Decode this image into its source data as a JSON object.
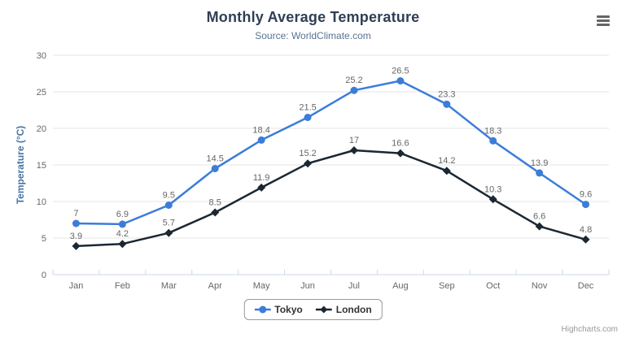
{
  "chart_data": {
    "type": "line",
    "title": "Monthly Average Temperature",
    "subtitle": "Source: WorldClimate.com",
    "categories": [
      "Jan",
      "Feb",
      "Mar",
      "Apr",
      "May",
      "Jun",
      "Jul",
      "Aug",
      "Sep",
      "Oct",
      "Nov",
      "Dec"
    ],
    "xlabel": "",
    "ylabel": "Temperature (°C)",
    "ylim": [
      0,
      30
    ],
    "ytick_step": 5,
    "grid": true,
    "data_labels": true,
    "legend_position": "bottom-center",
    "series": [
      {
        "name": "Tokyo",
        "color": "#3b7dd8",
        "marker": "circle",
        "values": [
          7,
          6.9,
          9.5,
          14.5,
          18.4,
          21.5,
          25.2,
          26.5,
          23.3,
          18.3,
          13.9,
          9.6
        ]
      },
      {
        "name": "London",
        "color": "#1b2733",
        "marker": "diamond",
        "values": [
          3.9,
          4.2,
          5.7,
          8.5,
          11.9,
          15.2,
          17.0,
          16.6,
          14.2,
          10.3,
          6.6,
          4.8
        ]
      }
    ]
  },
  "credits": {
    "label": "Highcharts.com"
  },
  "context_menu": {
    "icon": "hamburger-icon"
  },
  "colors": {
    "grid": "#e6e6e6",
    "axis_line": "#ccd6eb",
    "tick_label": "#666666",
    "data_label": "#666666",
    "title": "#2f3f54",
    "subtitle": "#5a7391",
    "y_axis_title": "#4673a5",
    "legend_border": "#999999",
    "legend_text": "#333333",
    "credits": "#999999",
    "menu_icon": "#666666"
  }
}
